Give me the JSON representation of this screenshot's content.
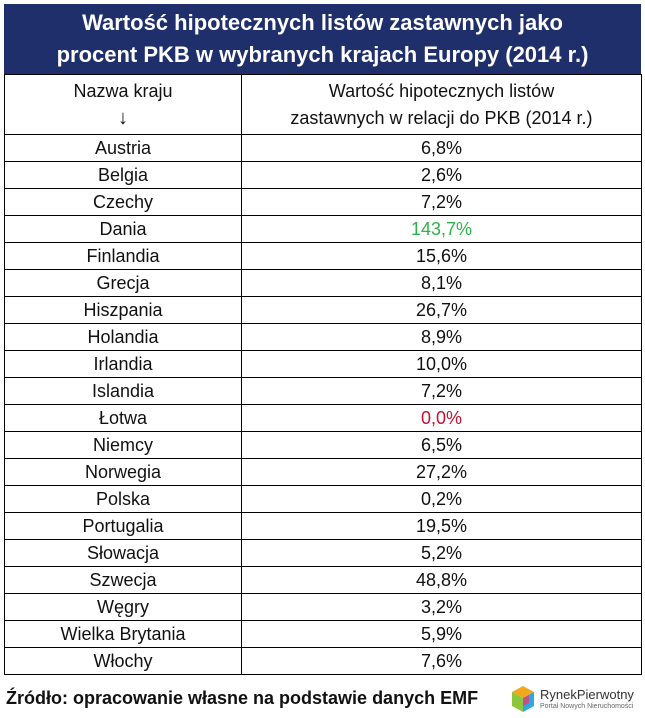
{
  "title": {
    "line1": "Wartość hipotecznych listów zastawnych jako",
    "line2": "procent PKB w wybranych krajach Europy (2014 r.)"
  },
  "table": {
    "header_country": "Nazwa kraju",
    "header_arrow": "↓",
    "header_value_line1": "Wartość hipotecznych listów",
    "header_value_line2": "zastawnych w relacji do PKB (2014 r.)"
  },
  "chart_data": {
    "type": "table",
    "title": "Wartość hipotecznych listów zastawnych jako procent PKB w wybranych krajach Europy (2014 r.)",
    "columns": [
      "Nazwa kraju",
      "Wartość hipotecznych listów zastawnych w relacji do PKB (2014 r.)"
    ],
    "rows": [
      {
        "country": "Austria",
        "value": "6,8%",
        "style": "normal"
      },
      {
        "country": "Belgia",
        "value": "2,6%",
        "style": "normal"
      },
      {
        "country": "Czechy",
        "value": "7,2%",
        "style": "normal"
      },
      {
        "country": "Dania",
        "value": "143,7%",
        "style": "green"
      },
      {
        "country": "Finlandia",
        "value": "15,6%",
        "style": "normal"
      },
      {
        "country": "Grecja",
        "value": "8,1%",
        "style": "normal"
      },
      {
        "country": "Hiszpania",
        "value": "26,7%",
        "style": "normal"
      },
      {
        "country": "Holandia",
        "value": "8,9%",
        "style": "normal"
      },
      {
        "country": "Irlandia",
        "value": "10,0%",
        "style": "normal"
      },
      {
        "country": "Islandia",
        "value": "7,2%",
        "style": "normal"
      },
      {
        "country": "Łotwa",
        "value": "0,0%",
        "style": "red"
      },
      {
        "country": "Niemcy",
        "value": "6,5%",
        "style": "normal"
      },
      {
        "country": "Norwegia",
        "value": "27,2%",
        "style": "normal"
      },
      {
        "country": "Polska",
        "value": "0,2%",
        "style": "bold"
      },
      {
        "country": "Portugalia",
        "value": "19,5%",
        "style": "normal"
      },
      {
        "country": "Słowacja",
        "value": "5,2%",
        "style": "normal"
      },
      {
        "country": "Szwecja",
        "value": "48,8%",
        "style": "normal"
      },
      {
        "country": "Węgry",
        "value": "3,2%",
        "style": "normal"
      },
      {
        "country": "Wielka Brytania",
        "value": "5,9%",
        "style": "normal"
      },
      {
        "country": "Włochy",
        "value": "7,6%",
        "style": "normal"
      }
    ]
  },
  "colors": {
    "title_bg": "#1f2f6b",
    "highlight_high": "#2db34a",
    "highlight_low": "#c8102e"
  },
  "footer": {
    "source": "Źródło: opracowanie własne na podstawie danych EMF"
  },
  "logo": {
    "name": "RynekPierwotny",
    "tagline": "Portal Nowych Nieruchomości",
    "icon": "cube-logo-icon"
  }
}
